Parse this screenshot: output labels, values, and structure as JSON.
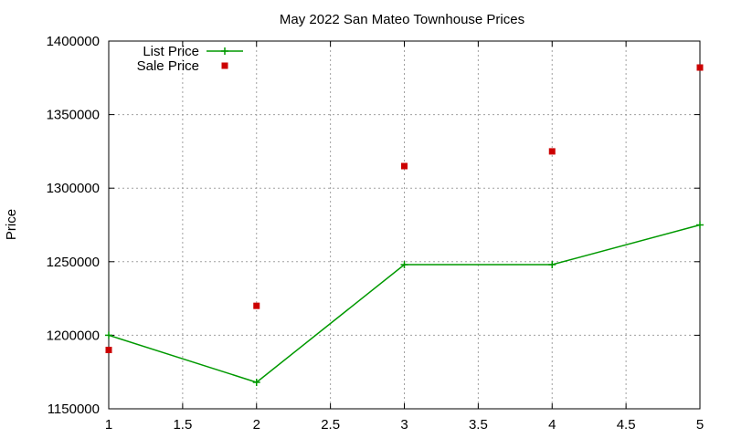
{
  "chart_data": {
    "type": "line",
    "title": "May 2022 San Mateo Townhouse Prices",
    "xlabel": "",
    "ylabel": "Price",
    "xlim": [
      1,
      5
    ],
    "ylim": [
      1150000,
      1400000
    ],
    "xticks": [
      1,
      1.5,
      2,
      2.5,
      3,
      3.5,
      4,
      4.5,
      5
    ],
    "xtick_labels": [
      "1",
      "1.5",
      "2",
      "2.5",
      "3",
      "3.5",
      "4",
      "4.5",
      "5"
    ],
    "yticks": [
      1150000,
      1200000,
      1250000,
      1300000,
      1350000,
      1400000
    ],
    "ytick_labels": [
      "1150000",
      "1200000",
      "1250000",
      "1300000",
      "1350000",
      "1400000"
    ],
    "grid": true,
    "legend_position": "top-left",
    "series": [
      {
        "name": "List Price",
        "style": "line+cross",
        "color": "#009900",
        "x": [
          1,
          2,
          3,
          4,
          5
        ],
        "y": [
          1200000,
          1168000,
          1248000,
          1248000,
          1275000
        ]
      },
      {
        "name": "Sale Price",
        "style": "square-points",
        "color": "#cc0000",
        "x": [
          1,
          2,
          3,
          4,
          5
        ],
        "y": [
          1190000,
          1220000,
          1315000,
          1325000,
          1382000
        ]
      }
    ]
  }
}
